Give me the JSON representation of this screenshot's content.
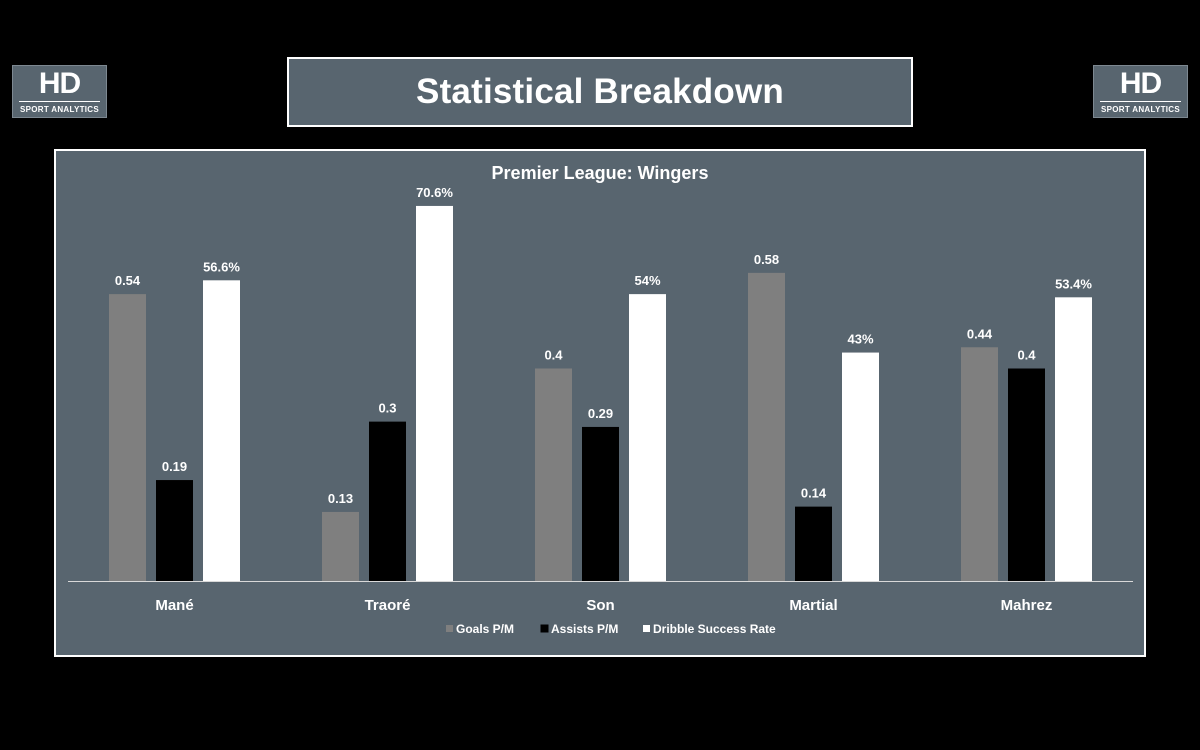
{
  "header": {
    "title": "Statistical Breakdown",
    "logo_mark": "HD",
    "logo_sub": "SPORT ANALYTICS"
  },
  "colors": {
    "background": "#000000",
    "panel": "#58656f",
    "goals": "#7f7f7f",
    "assists": "#000000",
    "dribble": "#ffffff"
  },
  "chart_data": {
    "type": "bar",
    "title": "Premier League: Wingers",
    "categories": [
      "Mané",
      "Traoré",
      "Son",
      "Martial",
      "Mahrez"
    ],
    "series": [
      {
        "name": "Goals P/M",
        "color": "#7f7f7f",
        "values": [
          0.54,
          0.13,
          0.4,
          0.58,
          0.44
        ],
        "labels": [
          "0.54",
          "0.13",
          "0.4",
          "0.58",
          "0.44"
        ]
      },
      {
        "name": "Assists P/M",
        "color": "#000000",
        "values": [
          0.19,
          0.3,
          0.29,
          0.14,
          0.4
        ],
        "labels": [
          "0.19",
          "0.3",
          "0.29",
          "0.14",
          "0.4"
        ]
      },
      {
        "name": "Dribble Success Rate",
        "color": "#ffffff",
        "values": [
          0.566,
          0.706,
          0.54,
          0.43,
          0.534
        ],
        "labels": [
          "56.6%",
          "70.6%",
          "54%",
          "43%",
          "53.4%"
        ]
      }
    ],
    "ylim": [
      0,
      0.8
    ],
    "xlabel": "",
    "ylabel": "",
    "grid": false,
    "legend_position": "bottom"
  }
}
